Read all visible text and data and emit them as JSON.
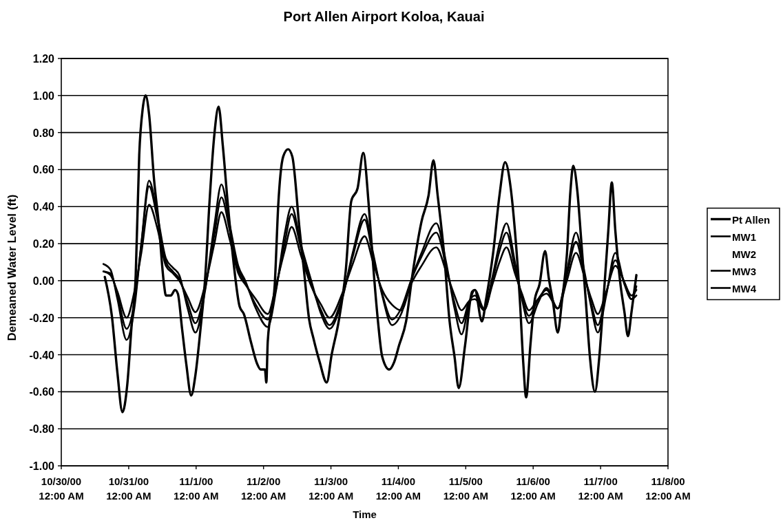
{
  "chart_data": {
    "type": "line",
    "title": "Port Allen Airport Koloa, Kauai",
    "xlabel": "Time",
    "ylabel": "Demeaned Water Level (ft)",
    "xlim": [
      "2000-10-30T00:00",
      "2000-11-08T00:00"
    ],
    "xticks": [
      {
        "value": "2000-10-30T00:00",
        "label": "10/30/00\n12:00 AM"
      },
      {
        "value": "2000-10-31T00:00",
        "label": "10/31/00\n12:00 AM"
      },
      {
        "value": "2000-11-01T00:00",
        "label": "11/1/00\n12:00 AM"
      },
      {
        "value": "2000-11-02T00:00",
        "label": "11/2/00\n12:00 AM"
      },
      {
        "value": "2000-11-03T00:00",
        "label": "11/3/00\n12:00 AM"
      },
      {
        "value": "2000-11-04T00:00",
        "label": "11/4/00\n12:00 AM"
      },
      {
        "value": "2000-11-05T00:00",
        "label": "11/5/00\n12:00 AM"
      },
      {
        "value": "2000-11-06T00:00",
        "label": "11/6/00\n12:00 AM"
      },
      {
        "value": "2000-11-07T00:00",
        "label": "11/7/00\n12:00 AM"
      },
      {
        "value": "2000-11-08T00:00",
        "label": "11/8/00\n12:00 AM"
      }
    ],
    "ylim": [
      -1.0,
      1.2
    ],
    "yticks": [
      {
        "value": -1.0,
        "label": "-1.00"
      },
      {
        "value": -0.8,
        "label": "-0.80"
      },
      {
        "value": -0.6,
        "label": "-0.60"
      },
      {
        "value": -0.4,
        "label": "-0.40"
      },
      {
        "value": -0.2,
        "label": "-0.20"
      },
      {
        "value": 0,
        "label": "0.00"
      },
      {
        "value": 0.2,
        "label": "0.20"
      },
      {
        "value": 0.4,
        "label": "0.40"
      },
      {
        "value": 0.6,
        "label": "0.60"
      },
      {
        "value": 0.8,
        "label": "0.80"
      },
      {
        "value": 1.0,
        "label": "1.00"
      },
      {
        "value": 1.2,
        "label": "1.20"
      }
    ],
    "grid": "y",
    "legend": "right",
    "line_style": "solid",
    "x": [
      "2000-10-30T15:00",
      "2000-10-30T17:30",
      "2000-10-30T20:00",
      "2000-10-30T23:15",
      "2000-10-31T02:00",
      "2000-10-31T04:30",
      "2000-10-31T07:15",
      "2000-10-31T10:15",
      "2000-10-31T13:15",
      "2000-10-31T15:45",
      "2000-10-31T18:00",
      "2000-10-31T21:00",
      "2000-10-31T23:45",
      "2000-11-01T03:15",
      "2000-11-01T06:30",
      "2000-11-01T09:00",
      "2000-11-01T12:00",
      "2000-11-01T15:00",
      "2000-11-01T17:30",
      "2000-11-01T21:15",
      "2000-11-02T01:30",
      "2000-11-02T04:30",
      "2000-11-02T07:30",
      "2000-11-02T10:00",
      "2000-11-02T13:15",
      "2000-11-02T17:00",
      "2000-11-02T20:30",
      "2000-11-02T23:30",
      "2000-11-03T04:00",
      "2000-11-03T07:45",
      "2000-11-03T12:00",
      "2000-11-03T15:00",
      "2000-11-03T18:15",
      "2000-11-03T21:45",
      "2000-11-04T01:00",
      "2000-11-04T04:30",
      "2000-11-04T08:15",
      "2000-11-04T13:30",
      "2000-11-04T17:00",
      "2000-11-04T20:00",
      "2000-11-04T22:30",
      "2000-11-05T01:15",
      "2000-11-05T03:15",
      "2000-11-05T06:30",
      "2000-11-05T09:30",
      "2000-11-05T12:00",
      "2000-11-05T14:30",
      "2000-11-05T17:30",
      "2000-11-05T20:00",
      "2000-11-05T22:30",
      "2000-11-06T01:45",
      "2000-11-06T04:45",
      "2000-11-06T08:45",
      "2000-11-06T12:00",
      "2000-11-06T15:15",
      "2000-11-06T18:15",
      "2000-11-06T20:45",
      "2000-11-06T23:00",
      "2000-11-07T02:00",
      "2000-11-07T05:15",
      "2000-11-07T08:30",
      "2000-11-07T11:00",
      "2000-11-07T12:45"
    ],
    "series": [
      {
        "name": "Pt Allen",
        "color": "#000000",
        "x": [
          "2000-10-30T15:30",
          "2000-10-30T18:00",
          "2000-10-30T20:00",
          "2000-10-30T21:45",
          "2000-10-30T23:30",
          "2000-10-31T01:00",
          "2000-10-31T02:30",
          "2000-10-31T03:45",
          "2000-10-31T05:00",
          "2000-10-31T06:00",
          "2000-10-31T07:15",
          "2000-10-31T09:00",
          "2000-10-31T10:45",
          "2000-10-31T12:30",
          "2000-10-31T13:15",
          "2000-10-31T15:00",
          "2000-10-31T16:30",
          "2000-10-31T17:30",
          "2000-10-31T19:00",
          "2000-10-31T20:30",
          "2000-10-31T22:15",
          "2000-10-31T23:45",
          "2000-11-01T01:30",
          "2000-11-01T03:15",
          "2000-11-01T04:45",
          "2000-11-01T06:30",
          "2000-11-01T08:00",
          "2000-11-01T09:30",
          "2000-11-01T11:15",
          "2000-11-01T13:15",
          "2000-11-01T15:30",
          "2000-11-01T17:00",
          "2000-11-01T19:30",
          "2000-11-01T21:45",
          "2000-11-01T23:00",
          "2000-11-02T00:30",
          "2000-11-02T01:00",
          "2000-11-02T01:30",
          "2000-11-02T04:00",
          "2000-11-02T05:15",
          "2000-11-02T07:00",
          "2000-11-02T08:45",
          "2000-11-02T10:15",
          "2000-11-02T12:45",
          "2000-11-02T14:30",
          "2000-11-02T16:15",
          "2000-11-02T17:45",
          "2000-11-02T20:00",
          "2000-11-02T22:30",
          "2000-11-03T00:15",
          "2000-11-03T02:45",
          "2000-11-03T05:15",
          "2000-11-03T07:15",
          "2000-11-03T09:30",
          "2000-11-03T11:30",
          "2000-11-03T13:30",
          "2000-11-03T15:00",
          "2000-11-03T16:45",
          "2000-11-03T18:15",
          "2000-11-03T20:45",
          "2000-11-03T22:30",
          "2000-11-04T00:15",
          "2000-11-04T02:45",
          "2000-11-04T05:00",
          "2000-11-04T08:15",
          "2000-11-04T10:45",
          "2000-11-04T12:30",
          "2000-11-04T14:00",
          "2000-11-04T16:15",
          "2000-11-04T18:15",
          "2000-11-04T20:00",
          "2000-11-04T21:30",
          "2000-11-04T23:45",
          "2000-11-05T02:15",
          "2000-11-05T03:15",
          "2000-11-05T05:45",
          "2000-11-05T07:15",
          "2000-11-05T09:45",
          "2000-11-05T12:00",
          "2000-11-05T14:00",
          "2000-11-05T16:00",
          "2000-11-05T17:30",
          "2000-11-05T19:15",
          "2000-11-05T20:30",
          "2000-11-05T21:30",
          "2000-11-05T23:00",
          "2000-11-06T00:30",
          "2000-11-06T02:15",
          "2000-11-06T04:15",
          "2000-11-06T05:30",
          "2000-11-06T07:00",
          "2000-11-06T08:45",
          "2000-11-06T10:15",
          "2000-11-06T12:00",
          "2000-11-06T13:15",
          "2000-11-06T14:15",
          "2000-11-06T15:45",
          "2000-11-06T17:00",
          "2000-11-06T18:45",
          "2000-11-06T20:15",
          "2000-11-06T22:00",
          "2000-11-06T23:30",
          "2000-11-07T01:00",
          "2000-11-07T02:45",
          "2000-11-07T04:00",
          "2000-11-07T05:15",
          "2000-11-07T07:00",
          "2000-11-07T08:30",
          "2000-11-07T09:45",
          "2000-11-07T11:00",
          "2000-11-07T12:45"
        ],
        "values": [
          0.02,
          -0.19,
          -0.5,
          -0.71,
          -0.56,
          -0.25,
          0.03,
          0.68,
          0.93,
          1.0,
          0.9,
          0.55,
          0.3,
          -0.01,
          -0.08,
          -0.08,
          -0.05,
          -0.07,
          -0.26,
          -0.45,
          -0.62,
          -0.51,
          -0.27,
          0.02,
          0.42,
          0.79,
          0.94,
          0.73,
          0.42,
          0.11,
          -0.14,
          -0.18,
          -0.33,
          -0.45,
          -0.48,
          -0.48,
          -0.55,
          -0.33,
          -0.02,
          0.41,
          0.67,
          0.71,
          0.67,
          0.29,
          0.04,
          -0.21,
          -0.31,
          -0.44,
          -0.55,
          -0.4,
          -0.22,
          0.05,
          0.43,
          0.5,
          0.69,
          0.4,
          0.09,
          -0.22,
          -0.41,
          -0.48,
          -0.44,
          -0.35,
          -0.22,
          0.03,
          0.32,
          0.46,
          0.65,
          0.46,
          0.15,
          -0.22,
          -0.41,
          -0.58,
          -0.35,
          -0.06,
          -0.05,
          -0.22,
          -0.1,
          0.15,
          0.46,
          0.64,
          0.5,
          0.27,
          -0.1,
          -0.45,
          -0.63,
          -0.35,
          -0.11,
          -0.02,
          0.16,
          0.02,
          -0.11,
          -0.28,
          -0.11,
          0.14,
          0.48,
          0.62,
          0.48,
          0.24,
          -0.11,
          -0.42,
          -0.6,
          -0.42,
          -0.11,
          0.27,
          0.53,
          0.27,
          -0.01,
          -0.17,
          -0.3,
          -0.17,
          0.03
        ]
      },
      {
        "name": "MW1",
        "color": "#000000",
        "values": [
          0.09,
          0.06,
          -0.1,
          -0.32,
          -0.15,
          0.2,
          0.54,
          0.35,
          0.12,
          0.07,
          0.03,
          -0.15,
          -0.28,
          -0.05,
          0.3,
          0.52,
          0.3,
          0.08,
          0.0,
          -0.15,
          -0.25,
          -0.05,
          0.25,
          0.4,
          0.2,
          0.0,
          -0.18,
          -0.26,
          -0.1,
          0.15,
          0.36,
          0.15,
          -0.08,
          -0.24,
          -0.18,
          0.0,
          0.15,
          0.31,
          0.1,
          -0.15,
          -0.29,
          -0.12,
          -0.05,
          -0.15,
          0.02,
          0.2,
          0.31,
          0.1,
          -0.1,
          -0.23,
          -0.12,
          -0.04,
          -0.15,
          0.05,
          0.26,
          0.05,
          -0.15,
          -0.28,
          -0.08,
          0.15,
          -0.02,
          -0.1,
          -0.08
        ]
      },
      {
        "name": "MW2",
        "values": [
          null,
          null,
          null,
          null,
          null,
          null,
          null,
          null,
          null,
          null,
          null,
          null,
          null,
          null,
          null,
          null,
          null,
          null,
          null,
          null,
          null,
          null,
          null,
          null,
          null,
          null,
          null,
          null,
          null,
          null,
          null,
          null,
          null,
          null,
          null,
          null,
          null,
          null,
          null,
          null,
          null,
          null,
          null,
          null,
          null,
          null,
          null,
          null,
          null,
          null,
          null,
          null,
          null,
          null,
          null,
          null,
          null,
          null,
          null,
          null,
          null,
          null,
          null
        ]
      },
      {
        "name": "MW3",
        "color": "#000000",
        "values": [
          0.05,
          0.04,
          -0.08,
          -0.26,
          -0.12,
          0.2,
          0.51,
          0.33,
          0.1,
          0.05,
          0.01,
          -0.12,
          -0.23,
          -0.04,
          0.25,
          0.45,
          0.27,
          0.06,
          -0.01,
          -0.13,
          -0.21,
          -0.04,
          0.2,
          0.36,
          0.18,
          -0.02,
          -0.16,
          -0.24,
          -0.09,
          0.13,
          0.33,
          0.13,
          -0.07,
          -0.21,
          -0.15,
          0.0,
          0.13,
          0.26,
          0.08,
          -0.12,
          -0.23,
          -0.11,
          -0.08,
          -0.16,
          0.0,
          0.16,
          0.26,
          0.07,
          -0.09,
          -0.19,
          -0.1,
          -0.05,
          -0.15,
          0.03,
          0.21,
          0.03,
          -0.13,
          -0.24,
          -0.07,
          0.11,
          -0.01,
          -0.08,
          -0.05
        ]
      },
      {
        "name": "MW4",
        "color": "#000000",
        "values": [
          0.05,
          0.03,
          -0.06,
          -0.2,
          -0.06,
          0.15,
          0.41,
          0.28,
          0.08,
          0.04,
          0.0,
          -0.09,
          -0.17,
          -0.02,
          0.2,
          0.37,
          0.22,
          0.04,
          -0.02,
          -0.1,
          -0.18,
          -0.02,
          0.16,
          0.29,
          0.14,
          -0.03,
          -0.13,
          -0.2,
          -0.07,
          0.09,
          0.24,
          0.1,
          -0.05,
          -0.13,
          -0.16,
          -0.02,
          0.08,
          0.18,
          0.05,
          -0.08,
          -0.16,
          -0.11,
          -0.1,
          -0.16,
          -0.02,
          0.1,
          0.18,
          0.04,
          -0.07,
          -0.16,
          -0.1,
          -0.07,
          -0.15,
          0.0,
          0.15,
          0.02,
          -0.1,
          -0.18,
          -0.06,
          0.08,
          -0.01,
          -0.1,
          -0.03
        ]
      }
    ]
  }
}
